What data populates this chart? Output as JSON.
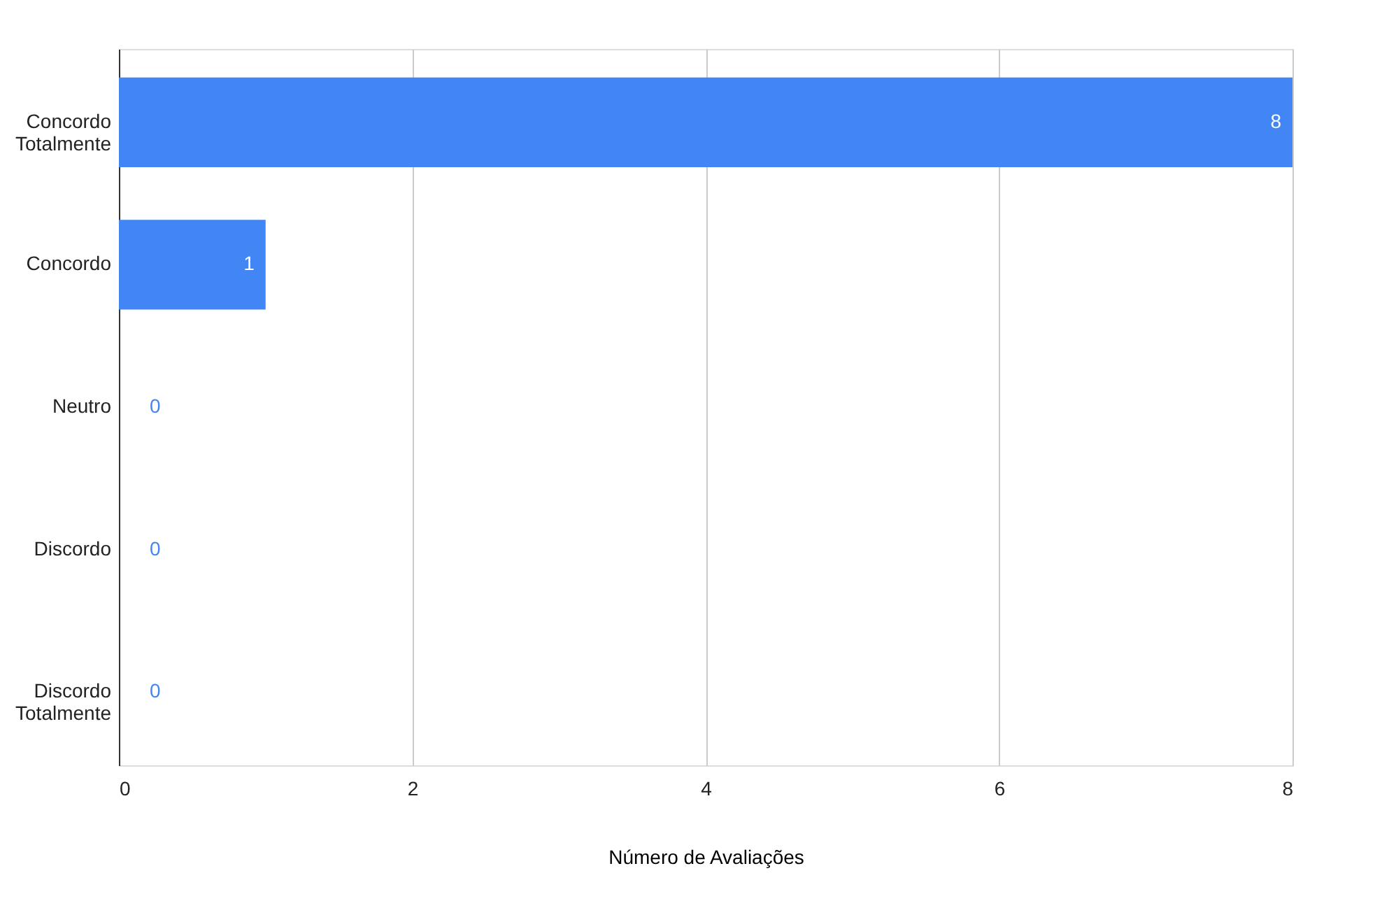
{
  "chart_data": {
    "type": "bar",
    "orientation": "horizontal",
    "xlabel": "Número de Avaliações",
    "categories": [
      "Concordo Totalmente",
      "Concordo",
      "Neutro",
      "Discordo",
      "Discordo Totalmente"
    ],
    "values": [
      8,
      1,
      0,
      0,
      0
    ],
    "color": "#4285f4",
    "xlim": [
      0,
      8
    ],
    "xticks": [
      0,
      2,
      4,
      6,
      8
    ],
    "grid": "x",
    "data_labels": true
  }
}
